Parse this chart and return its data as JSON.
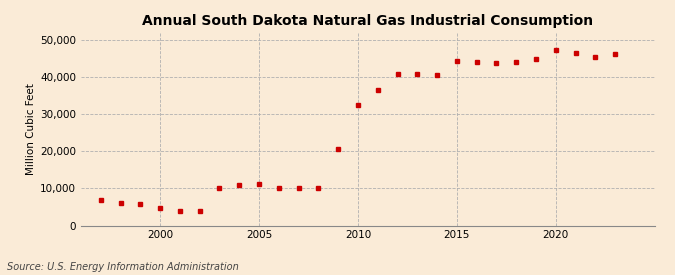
{
  "title": "Annual South Dakota Natural Gas Industrial Consumption",
  "ylabel": "Million Cubic Feet",
  "source": "Source: U.S. Energy Information Administration",
  "background_color": "#faebd7",
  "plot_bg_color": "#faebd7",
  "marker_color": "#cc0000",
  "marker": "s",
  "markersize": 3.5,
  "years": [
    1997,
    1998,
    1999,
    2000,
    2001,
    2002,
    2003,
    2004,
    2005,
    2006,
    2007,
    2008,
    2009,
    2010,
    2011,
    2012,
    2013,
    2014,
    2015,
    2016,
    2017,
    2018,
    2019,
    2020,
    2021,
    2022,
    2023
  ],
  "values": [
    6800,
    6100,
    5800,
    4600,
    4000,
    3900,
    10200,
    11000,
    11200,
    10200,
    10200,
    10000,
    20800,
    32500,
    36500,
    41000,
    40800,
    40700,
    44500,
    44200,
    44000,
    44300,
    45000,
    47500,
    46500,
    45500,
    46200
  ],
  "xlim": [
    1996,
    2025
  ],
  "ylim": [
    0,
    52000
  ],
  "yticks": [
    0,
    10000,
    20000,
    30000,
    40000,
    50000
  ],
  "ytick_labels": [
    "0",
    "10,000",
    "20,000",
    "30,000",
    "40,000",
    "50,000"
  ],
  "xticks": [
    2000,
    2005,
    2010,
    2015,
    2020
  ],
  "grid_color": "#b0b0b0",
  "grid_style": "--",
  "title_fontsize": 10,
  "label_fontsize": 7.5,
  "tick_fontsize": 7.5,
  "source_fontsize": 7
}
